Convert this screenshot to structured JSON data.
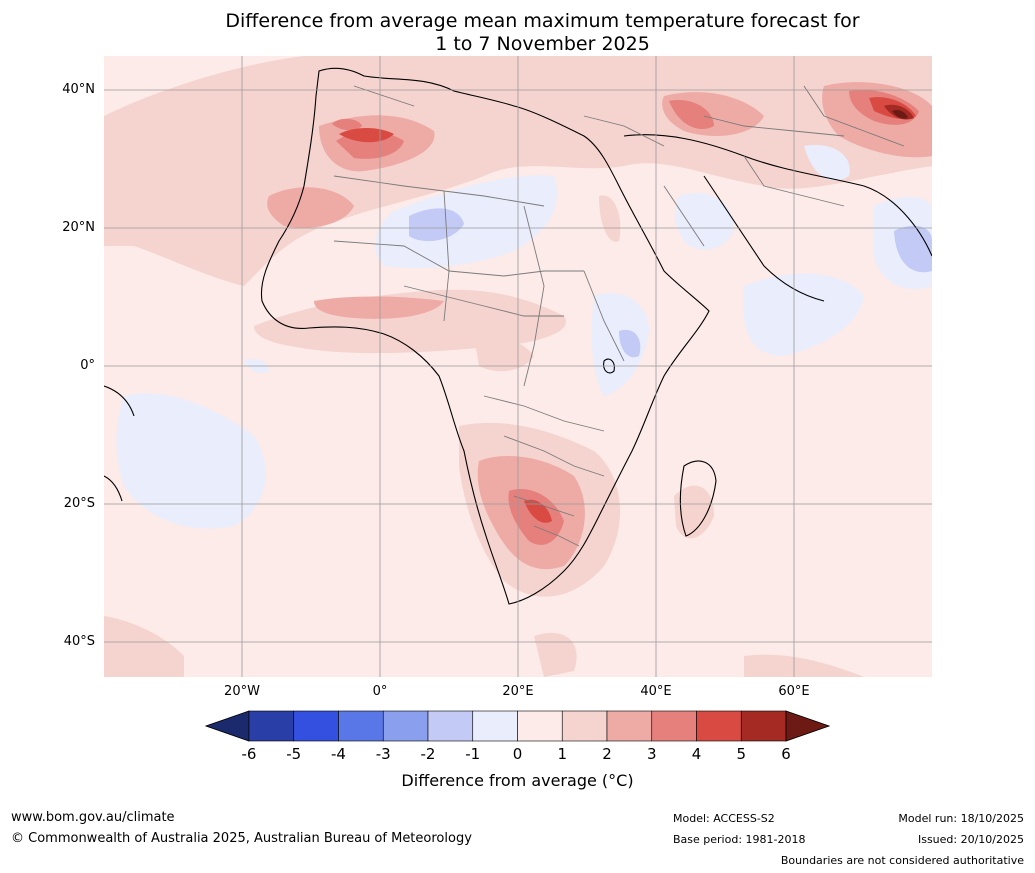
{
  "title_line1": "Difference from average mean maximum temperature forecast for",
  "title_line2": "1 to 7 November 2025",
  "lat_labels": [
    "40°N",
    "20°N",
    "0°",
    "20°S",
    "40°S"
  ],
  "lon_labels": [
    "20°W",
    "0°",
    "20°E",
    "40°E",
    "60°E"
  ],
  "colorbar": {
    "ticks": [
      "-6",
      "-5",
      "-4",
      "-3",
      "-2",
      "-1",
      "0",
      "1",
      "2",
      "3",
      "4",
      "5",
      "6"
    ],
    "label": "Difference from average (°C)",
    "colors": {
      "under": "#1a2a6c",
      "bins": [
        "#2a3ea8",
        "#3450e0",
        "#5a77e8",
        "#8a9fee",
        "#c2caf5",
        "#e9edfc",
        "#fcebe8",
        "#f5d3cf",
        "#eeaaa5",
        "#e6807c",
        "#d94a42",
        "#a62a24"
      ],
      "over": "#6e1a14"
    }
  },
  "footer": {
    "url": "www.bom.gov.au/climate",
    "copyright": "© Commonwealth of Australia 2025, Australian Bureau of Meteorology",
    "model": "Model: ACCESS-S2",
    "base_period": "Base period: 1981-2018",
    "model_run": "Model run: 18/10/2025",
    "issued": "Issued: 20/10/2025",
    "disclaimer": "Boundaries are not considered authoritative"
  }
}
